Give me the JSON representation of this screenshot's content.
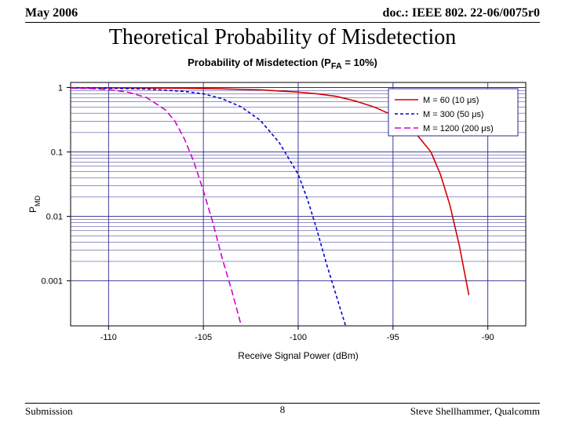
{
  "header": {
    "left": "May 2006",
    "right": "doc.: IEEE 802. 22-06/0075r0"
  },
  "title": "Theoretical Probability of Misdetection",
  "footer": {
    "left": "Submission",
    "right": "Steve Shellhammer, Qualcomm"
  },
  "page_number": "8",
  "chart": {
    "type": "line",
    "title": "Probability of Misdetection (P_FA = 10%)",
    "title_fontsize": 13,
    "xlabel": "Receive Signal Power (dBm)",
    "ylabel": "P_MD",
    "label_fontsize": 12,
    "xlim": [
      -112,
      -88
    ],
    "ylim": [
      0.0002,
      1.2
    ],
    "yscale": "log",
    "xtick_positions": [
      -110,
      -105,
      -100,
      -95,
      -90
    ],
    "xtick_labels": [
      "-110",
      "-105",
      "-100",
      "-95",
      "-90"
    ],
    "ytick_positions": [
      1,
      0.1,
      0.01,
      0.001
    ],
    "ytick_labels": [
      "1",
      "0.1",
      "0.01",
      "0.001"
    ],
    "grid_color": "#29298f",
    "axis_color": "#000000",
    "background_color": "#ffffff",
    "line_width": 1.6,
    "series": [
      {
        "label": "M = 60 (10 μs)",
        "color": "#d40000",
        "dash": "none",
        "x": [
          -112,
          -110,
          -108,
          -106,
          -104,
          -102,
          -100,
          -99,
          -98,
          -97,
          -96,
          -95,
          -94,
          -93,
          -92.5,
          -92,
          -91.5,
          -91
        ],
        "y": [
          0.995,
          0.99,
          0.985,
          0.975,
          0.955,
          0.92,
          0.85,
          0.8,
          0.73,
          0.62,
          0.5,
          0.37,
          0.23,
          0.1,
          0.045,
          0.015,
          0.0035,
          0.0006
        ]
      },
      {
        "label": "M = 300 (50 μs)",
        "color": "#0000d4",
        "dash": "4,3",
        "x": [
          -112,
          -110,
          -108,
          -106,
          -105,
          -104,
          -103,
          -102,
          -101,
          -100,
          -99.5,
          -99,
          -98.5,
          -98,
          -97.5
        ],
        "y": [
          0.99,
          0.98,
          0.95,
          0.87,
          0.8,
          0.67,
          0.5,
          0.31,
          0.14,
          0.045,
          0.018,
          0.006,
          0.0018,
          0.0006,
          0.0002
        ]
      },
      {
        "label": "M = 1200 (200 μs)",
        "color": "#d400d4",
        "dash": "8,4",
        "x": [
          -112,
          -111,
          -110,
          -109,
          -108,
          -107,
          -106.5,
          -106,
          -105.5,
          -105,
          -104.5,
          -104,
          -103.5,
          -103
        ],
        "y": [
          0.98,
          0.965,
          0.93,
          0.85,
          0.7,
          0.45,
          0.3,
          0.16,
          0.07,
          0.025,
          0.008,
          0.0022,
          0.0007,
          0.0002
        ]
      }
    ],
    "legend": {
      "position": "upper-right",
      "border_color": "#29298f",
      "background": "#ffffff"
    }
  }
}
